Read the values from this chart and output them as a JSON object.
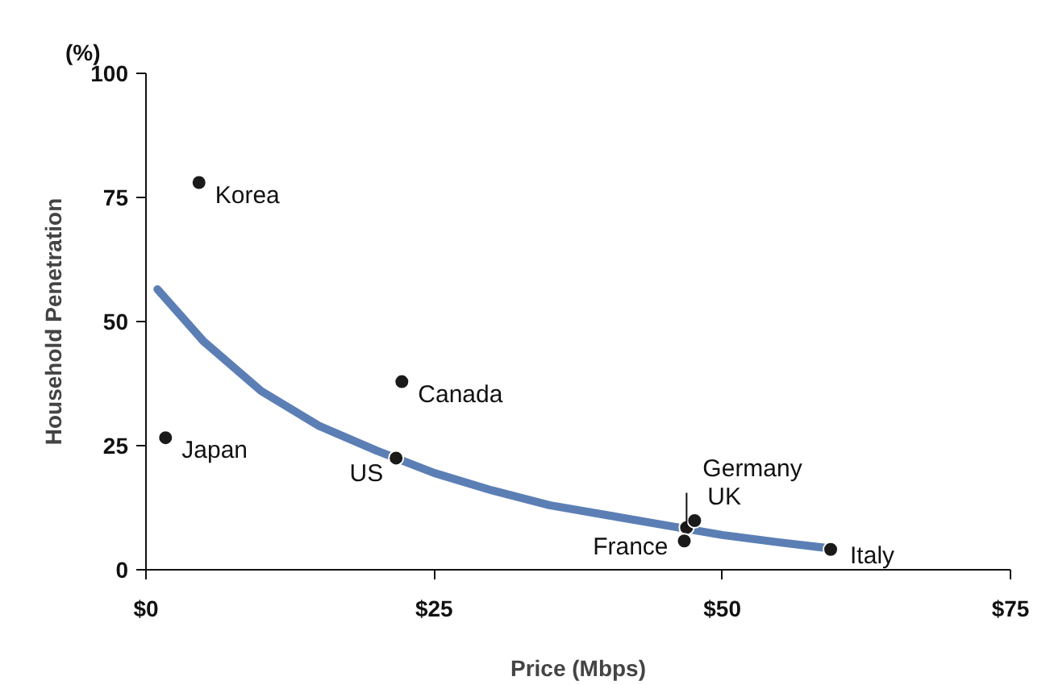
{
  "chart_data": {
    "type": "scatter",
    "xlabel": "Price (Mbps)",
    "ylabel": "Household Penetration",
    "xlim": [
      0,
      75
    ],
    "ylim": [
      0,
      100
    ],
    "xticks": [
      {
        "value": 0,
        "label": "$0"
      },
      {
        "value": 25,
        "label": "$25"
      },
      {
        "value": 50,
        "label": "$50"
      },
      {
        "value": 75,
        "label": "$75"
      }
    ],
    "yticks": [
      0,
      25,
      50,
      75,
      100
    ],
    "grid": false,
    "marker": "circle",
    "series": [
      {
        "type": "line",
        "marker": "none",
        "color": "#5b7fb5",
        "x": [
          1,
          5,
          10,
          15,
          20,
          25,
          30,
          35,
          40,
          45,
          50,
          55,
          59.4
        ],
        "values": [
          56.5,
          46,
          36,
          29,
          24,
          19.5,
          16,
          13,
          11,
          9,
          7,
          5.5,
          4.3
        ]
      },
      {
        "color": "#1a1a1a",
        "x": [
          4.6,
          1.7,
          22.2,
          21.7,
          46.9,
          47.6,
          46.7,
          59.4
        ],
        "values": [
          78,
          26.6,
          37.9,
          22.5,
          8.5,
          9.9,
          5.8,
          4.1
        ]
      }
    ],
    "annotations": [
      "(%)",
      {
        "text": "Korea",
        "x": 4.6,
        "y": 78
      },
      {
        "text": "Japan",
        "x": 1.7,
        "y": 26.6
      },
      {
        "text": "Canada",
        "x": 22.2,
        "y": 37.9
      },
      {
        "text": "US",
        "x": 21.7,
        "y": 22.5
      },
      {
        "text": "Germany",
        "x": 46.9,
        "y": 8.5
      },
      {
        "text": "UK",
        "x": 47.6,
        "y": 9.9
      },
      {
        "text": "France",
        "x": 46.7,
        "y": 5.8
      },
      {
        "text": "Italy",
        "x": 59.4,
        "y": 4.1
      }
    ]
  }
}
